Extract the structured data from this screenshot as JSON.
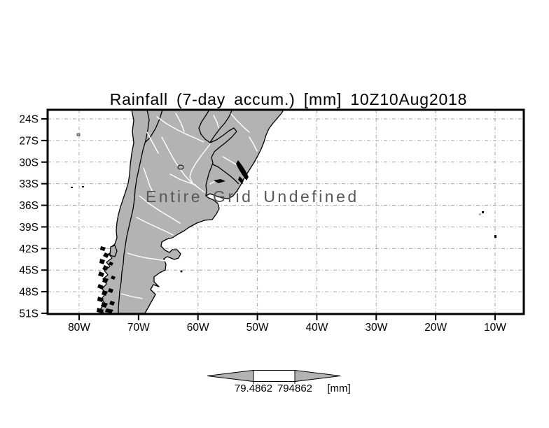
{
  "title": "Rainfall (7-day accum.) [mm] 10Z10Aug2018",
  "plot": {
    "message": "Entire Grid Undefined",
    "lat_ticks": [
      "24S",
      "27S",
      "30S",
      "33S",
      "36S",
      "39S",
      "42S",
      "45S",
      "48S",
      "51S"
    ],
    "lon_ticks": [
      "80W",
      "70W",
      "60W",
      "50W",
      "40W",
      "30W",
      "20W",
      "10W"
    ]
  },
  "colorbar": {
    "left_value": "79.4862",
    "right_value": "794862",
    "unit": "[mm]"
  },
  "colors": {
    "land_fill": "#b3b3b3",
    "grid_line": "#a8a8a8",
    "message_grey": "#575757",
    "colorbar_fill": "#b3b3b3"
  },
  "chart_data": {
    "type": "heatmap",
    "title": "Rainfall (7-day accum.) [mm] 10Z10Aug2018",
    "x_ticks": [
      "80W",
      "70W",
      "60W",
      "50W",
      "40W",
      "30W",
      "20W",
      "10W"
    ],
    "y_ticks": [
      "24S",
      "27S",
      "30S",
      "33S",
      "36S",
      "39S",
      "42S",
      "45S",
      "48S",
      "51S"
    ],
    "xlabel": "",
    "ylabel": "",
    "values": [],
    "annotation": "Entire Grid Undefined",
    "legend_position": "bottom",
    "grid": true,
    "colorbar_labels": [
      "79.4862",
      "794862"
    ],
    "colorbar_unit": "[mm]",
    "region": "South America southern cone (map basemap, shaded field undefined)"
  }
}
